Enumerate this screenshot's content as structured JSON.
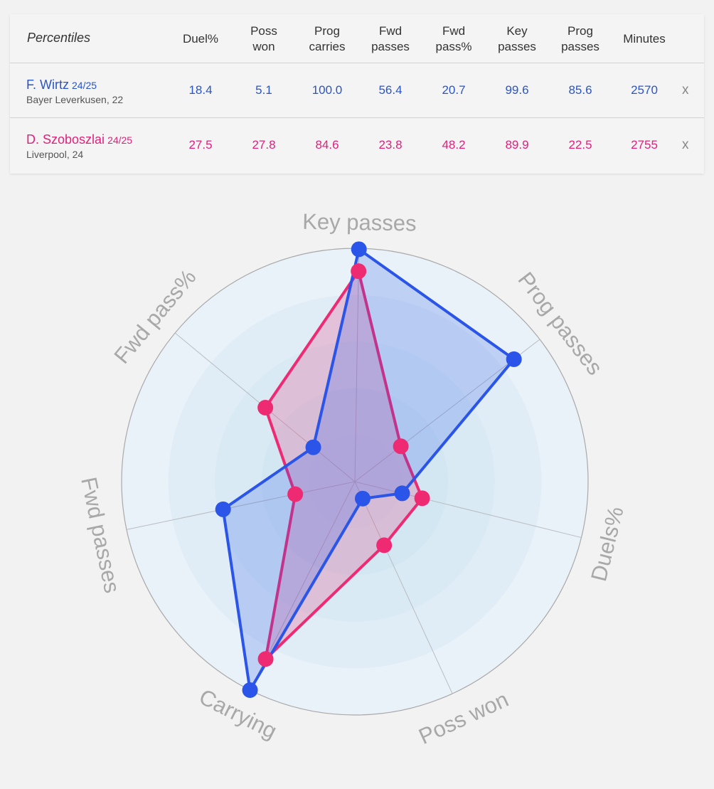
{
  "table": {
    "title": "Percentiles",
    "columns": [
      {
        "line1": "Duel%",
        "line2": ""
      },
      {
        "line1": "Poss",
        "line2": "won"
      },
      {
        "line1": "Prog",
        "line2": "carries"
      },
      {
        "line1": "Fwd",
        "line2": "passes"
      },
      {
        "line1": "Fwd",
        "line2": "pass%"
      },
      {
        "line1": "Key",
        "line2": "passes"
      },
      {
        "line1": "Prog",
        "line2": "passes"
      },
      {
        "line1": "Minutes",
        "line2": ""
      }
    ],
    "players": [
      {
        "name": "F. Wirtz",
        "season": "24/25",
        "sub": "Bayer Leverkusen, 22",
        "values": [
          "18.4",
          "5.1",
          "100.0",
          "56.4",
          "20.7",
          "99.6",
          "85.6",
          "2570"
        ],
        "remove": "x",
        "color": "#2a55c6"
      },
      {
        "name": "D. Szoboszlai",
        "season": "24/25",
        "sub": "Liverpool, 24",
        "values": [
          "27.5",
          "27.8",
          "84.6",
          "23.8",
          "48.2",
          "89.9",
          "22.5",
          "2755"
        ],
        "remove": "x",
        "color": "#e0217a"
      }
    ]
  },
  "chart_data": {
    "type": "radar",
    "axes": [
      "Key passes",
      "Prog passes",
      "Duels%",
      "Poss won",
      "Carrying",
      "Fwd passes",
      "Fwd pass%"
    ],
    "range": [
      0,
      100
    ],
    "series": [
      {
        "name": "F. Wirtz 24/25",
        "color": "#2a55e8",
        "values": [
          99.6,
          85.6,
          18.4,
          5.1,
          100.0,
          56.4,
          20.7
        ]
      },
      {
        "name": "D. Szoboszlai 24/25",
        "color": "#ee2a72",
        "values": [
          89.9,
          22.5,
          27.5,
          27.8,
          84.6,
          23.8,
          48.2
        ]
      }
    ]
  }
}
